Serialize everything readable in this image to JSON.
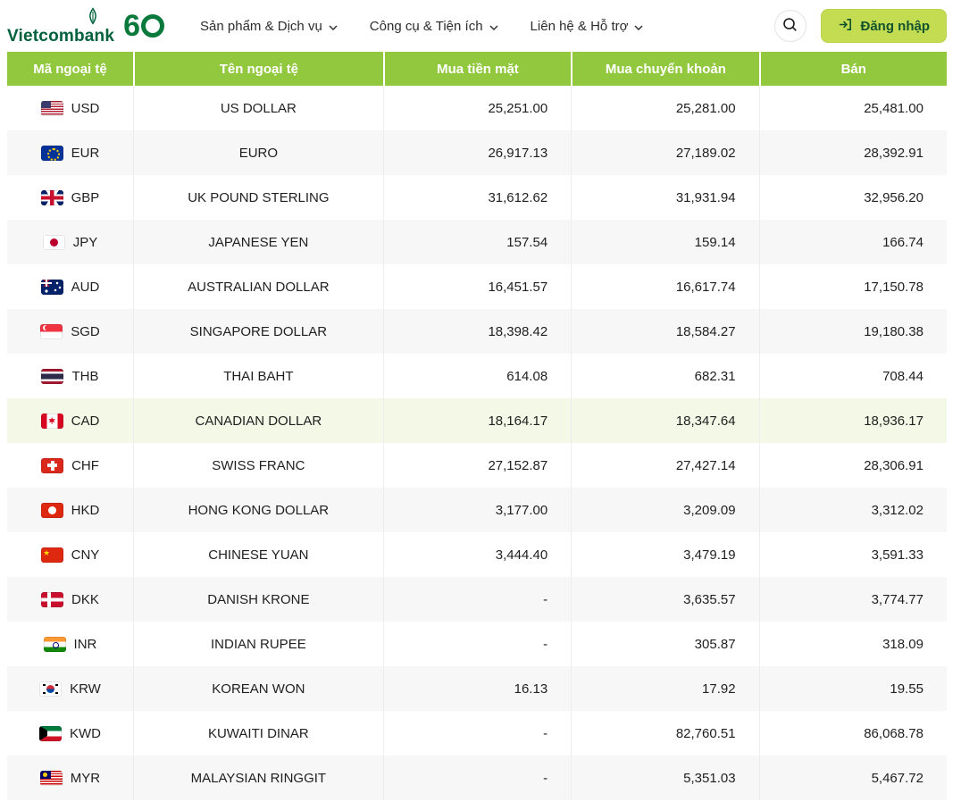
{
  "brand": {
    "name": "Vietcombank",
    "anniversary": "60"
  },
  "colors": {
    "brand_green": "#00613C",
    "table_header_green": "#92C83E",
    "login_button_bg": "#C3DC52",
    "row_alt": "#F7F7F7",
    "row_highlight": "#F3F8E7"
  },
  "nav": {
    "items": [
      {
        "label": "Sản phẩm & Dịch vụ"
      },
      {
        "label": "Công cụ & Tiện ích"
      },
      {
        "label": "Liên hệ & Hỗ trợ"
      }
    ]
  },
  "header_actions": {
    "search_icon": "magnifier",
    "login_label": "Đăng nhập",
    "login_icon": "arrow-into-door"
  },
  "table": {
    "columns": [
      "Mã ngoại tệ",
      "Tên ngoại tệ",
      "Mua tiền mặt",
      "Mua chuyển khoản",
      "Bán"
    ],
    "rows": [
      {
        "code": "USD",
        "name": "US DOLLAR",
        "cash": "25,251.00",
        "transfer": "25,281.00",
        "sell": "25,481.00",
        "highlight": false
      },
      {
        "code": "EUR",
        "name": "EURO",
        "cash": "26,917.13",
        "transfer": "27,189.02",
        "sell": "28,392.91",
        "highlight": false
      },
      {
        "code": "GBP",
        "name": "UK POUND STERLING",
        "cash": "31,612.62",
        "transfer": "31,931.94",
        "sell": "32,956.20",
        "highlight": false
      },
      {
        "code": "JPY",
        "name": "JAPANESE YEN",
        "cash": "157.54",
        "transfer": "159.14",
        "sell": "166.74",
        "highlight": false
      },
      {
        "code": "AUD",
        "name": "AUSTRALIAN DOLLAR",
        "cash": "16,451.57",
        "transfer": "16,617.74",
        "sell": "17,150.78",
        "highlight": false
      },
      {
        "code": "SGD",
        "name": "SINGAPORE DOLLAR",
        "cash": "18,398.42",
        "transfer": "18,584.27",
        "sell": "19,180.38",
        "highlight": false
      },
      {
        "code": "THB",
        "name": "THAI BAHT",
        "cash": "614.08",
        "transfer": "682.31",
        "sell": "708.44",
        "highlight": false
      },
      {
        "code": "CAD",
        "name": "CANADIAN DOLLAR",
        "cash": "18,164.17",
        "transfer": "18,347.64",
        "sell": "18,936.17",
        "highlight": true
      },
      {
        "code": "CHF",
        "name": "SWISS FRANC",
        "cash": "27,152.87",
        "transfer": "27,427.14",
        "sell": "28,306.91",
        "highlight": false
      },
      {
        "code": "HKD",
        "name": "HONG KONG DOLLAR",
        "cash": "3,177.00",
        "transfer": "3,209.09",
        "sell": "3,312.02",
        "highlight": false
      },
      {
        "code": "CNY",
        "name": "CHINESE YUAN",
        "cash": "3,444.40",
        "transfer": "3,479.19",
        "sell": "3,591.33",
        "highlight": false
      },
      {
        "code": "DKK",
        "name": "DANISH KRONE",
        "cash": "-",
        "transfer": "3,635.57",
        "sell": "3,774.77",
        "highlight": false
      },
      {
        "code": "INR",
        "name": "INDIAN RUPEE",
        "cash": "-",
        "transfer": "305.87",
        "sell": "318.09",
        "highlight": false
      },
      {
        "code": "KRW",
        "name": "KOREAN WON",
        "cash": "16.13",
        "transfer": "17.92",
        "sell": "19.55",
        "highlight": false
      },
      {
        "code": "KWD",
        "name": "KUWAITI DINAR",
        "cash": "-",
        "transfer": "82,760.51",
        "sell": "86,068.78",
        "highlight": false
      },
      {
        "code": "MYR",
        "name": "MALAYSIAN RINGGIT",
        "cash": "-",
        "transfer": "5,351.03",
        "sell": "5,467.72",
        "highlight": false
      }
    ]
  }
}
